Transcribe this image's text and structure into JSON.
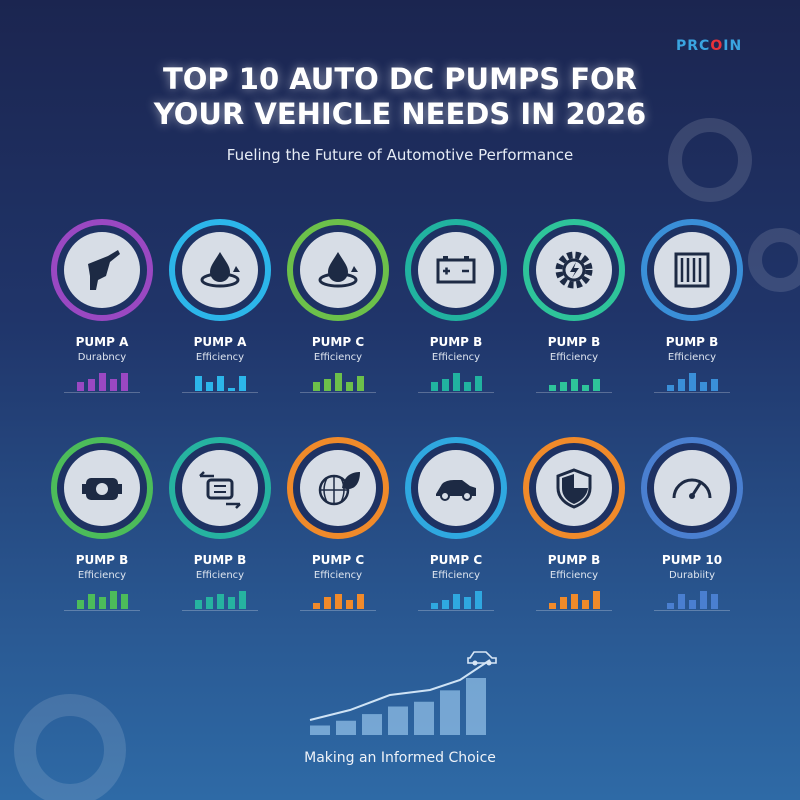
{
  "brand": {
    "logo_prefix": "PRC",
    "logo_o": "O",
    "logo_suffix": "IN",
    "accent": "#3aa4e0",
    "o_color": "#e8323a"
  },
  "header": {
    "title_line1": "TOP 10 AUTO DC PUMPS FOR",
    "title_line2": "YOUR VEHICLE NEEDS IN 2026",
    "subtitle": "Fueling the Future of Automotive Performance"
  },
  "cards": [
    {
      "name": "PUMP A",
      "metric": "Durabncy",
      "icon": "fuel-nozzle-icon",
      "color": "#9a48c2",
      "bars": [
        3,
        4,
        6,
        4,
        6
      ]
    },
    {
      "name": "PUMP A",
      "metric": "Efficiency",
      "icon": "oil-drop-cycle-icon",
      "color": "#2cb6ea",
      "bars": [
        5,
        3,
        5,
        1,
        5
      ]
    },
    {
      "name": "PUMP C",
      "metric": "Efficiency",
      "icon": "oil-drop-cycle-icon",
      "color": "#6cc04a",
      "bars": [
        3,
        4,
        6,
        3,
        5
      ]
    },
    {
      "name": "PUMP B",
      "metric": "Efficiency",
      "icon": "battery-icon",
      "color": "#21b3a0",
      "bars": [
        3,
        4,
        6,
        3,
        5
      ]
    },
    {
      "name": "PUMP B",
      "metric": "Efficiency",
      "icon": "gear-bolt-icon",
      "color": "#2ec49a",
      "bars": [
        2,
        3,
        4,
        2,
        4
      ]
    },
    {
      "name": "PUMP B",
      "metric": "Efficiency",
      "icon": "radiator-icon",
      "color": "#3a8fd8",
      "bars": [
        2,
        4,
        6,
        3,
        4
      ]
    },
    {
      "name": "PUMP B",
      "metric": "Efficiency",
      "icon": "engine-icon",
      "color": "#4cbc5a",
      "bars": [
        3,
        5,
        4,
        6,
        5
      ]
    },
    {
      "name": "PUMP B",
      "metric": "Efficiency",
      "icon": "engine-arrows-icon",
      "color": "#26b3a0",
      "bars": [
        3,
        4,
        5,
        4,
        6
      ]
    },
    {
      "name": "PUMP C",
      "metric": "Efficiency",
      "icon": "eco-globe-icon",
      "color": "#f08a2a",
      "bars": [
        2,
        4,
        5,
        3,
        5
      ]
    },
    {
      "name": "PUMP C",
      "metric": "Efficiency",
      "icon": "car-icon",
      "color": "#2fa8e0",
      "bars": [
        2,
        3,
        5,
        4,
        6
      ]
    },
    {
      "name": "PUMP B",
      "metric": "Efficiency",
      "icon": "shield-icon",
      "color": "#f08a2a",
      "bars": [
        2,
        4,
        5,
        3,
        6
      ]
    },
    {
      "name": "PUMP 10",
      "metric": "Durabiity",
      "icon": "speedometer-icon",
      "color": "#4a7fd0",
      "bars": [
        2,
        5,
        3,
        6,
        5
      ]
    }
  ],
  "footer": {
    "caption": "Making an Informed Choice",
    "growth_bars": [
      1,
      1.5,
      2.2,
      3,
      3.5,
      4.7,
      6
    ]
  }
}
